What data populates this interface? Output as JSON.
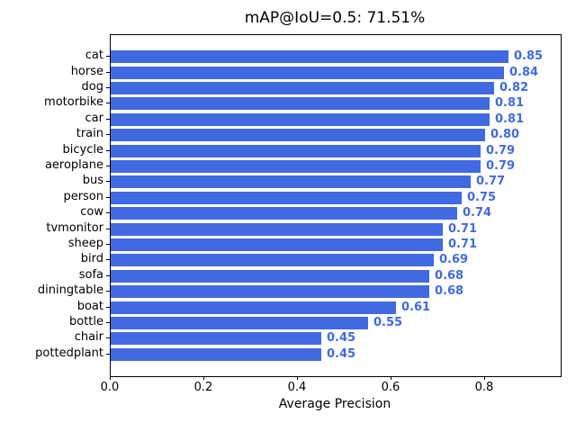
{
  "chart_data": {
    "type": "bar",
    "orientation": "horizontal",
    "title": "mAP@IoU=0.5: 71.51%",
    "xlabel": "Average Precision",
    "categories": [
      "cat",
      "horse",
      "dog",
      "motorbike",
      "car",
      "train",
      "bicycle",
      "aeroplane",
      "bus",
      "person",
      "cow",
      "tvmonitor",
      "sheep",
      "bird",
      "sofa",
      "diningtable",
      "boat",
      "bottle",
      "chair",
      "pottedplant"
    ],
    "values": [
      0.85,
      0.84,
      0.82,
      0.81,
      0.81,
      0.8,
      0.79,
      0.79,
      0.77,
      0.75,
      0.74,
      0.71,
      0.71,
      0.69,
      0.68,
      0.68,
      0.61,
      0.55,
      0.45,
      0.45
    ],
    "value_labels": [
      "0.85",
      "0.84",
      "0.82",
      "0.81",
      "0.81",
      "0.80",
      "0.79",
      "0.79",
      "0.77",
      "0.75",
      "0.74",
      "0.71",
      "0.71",
      "0.69",
      "0.68",
      "0.68",
      "0.61",
      "0.55",
      "0.45",
      "0.45"
    ],
    "xticks": [
      0.0,
      0.2,
      0.4,
      0.6,
      0.8
    ],
    "xtick_labels": [
      "0.0",
      "0.2",
      "0.4",
      "0.6",
      "0.8"
    ],
    "xlim": [
      0,
      0.9615
    ],
    "grid": false,
    "legend": null,
    "bar_color": "#4169E1",
    "value_label_color": "#4169E1",
    "axis_color": "#000000",
    "background_color": "#ffffff"
  }
}
